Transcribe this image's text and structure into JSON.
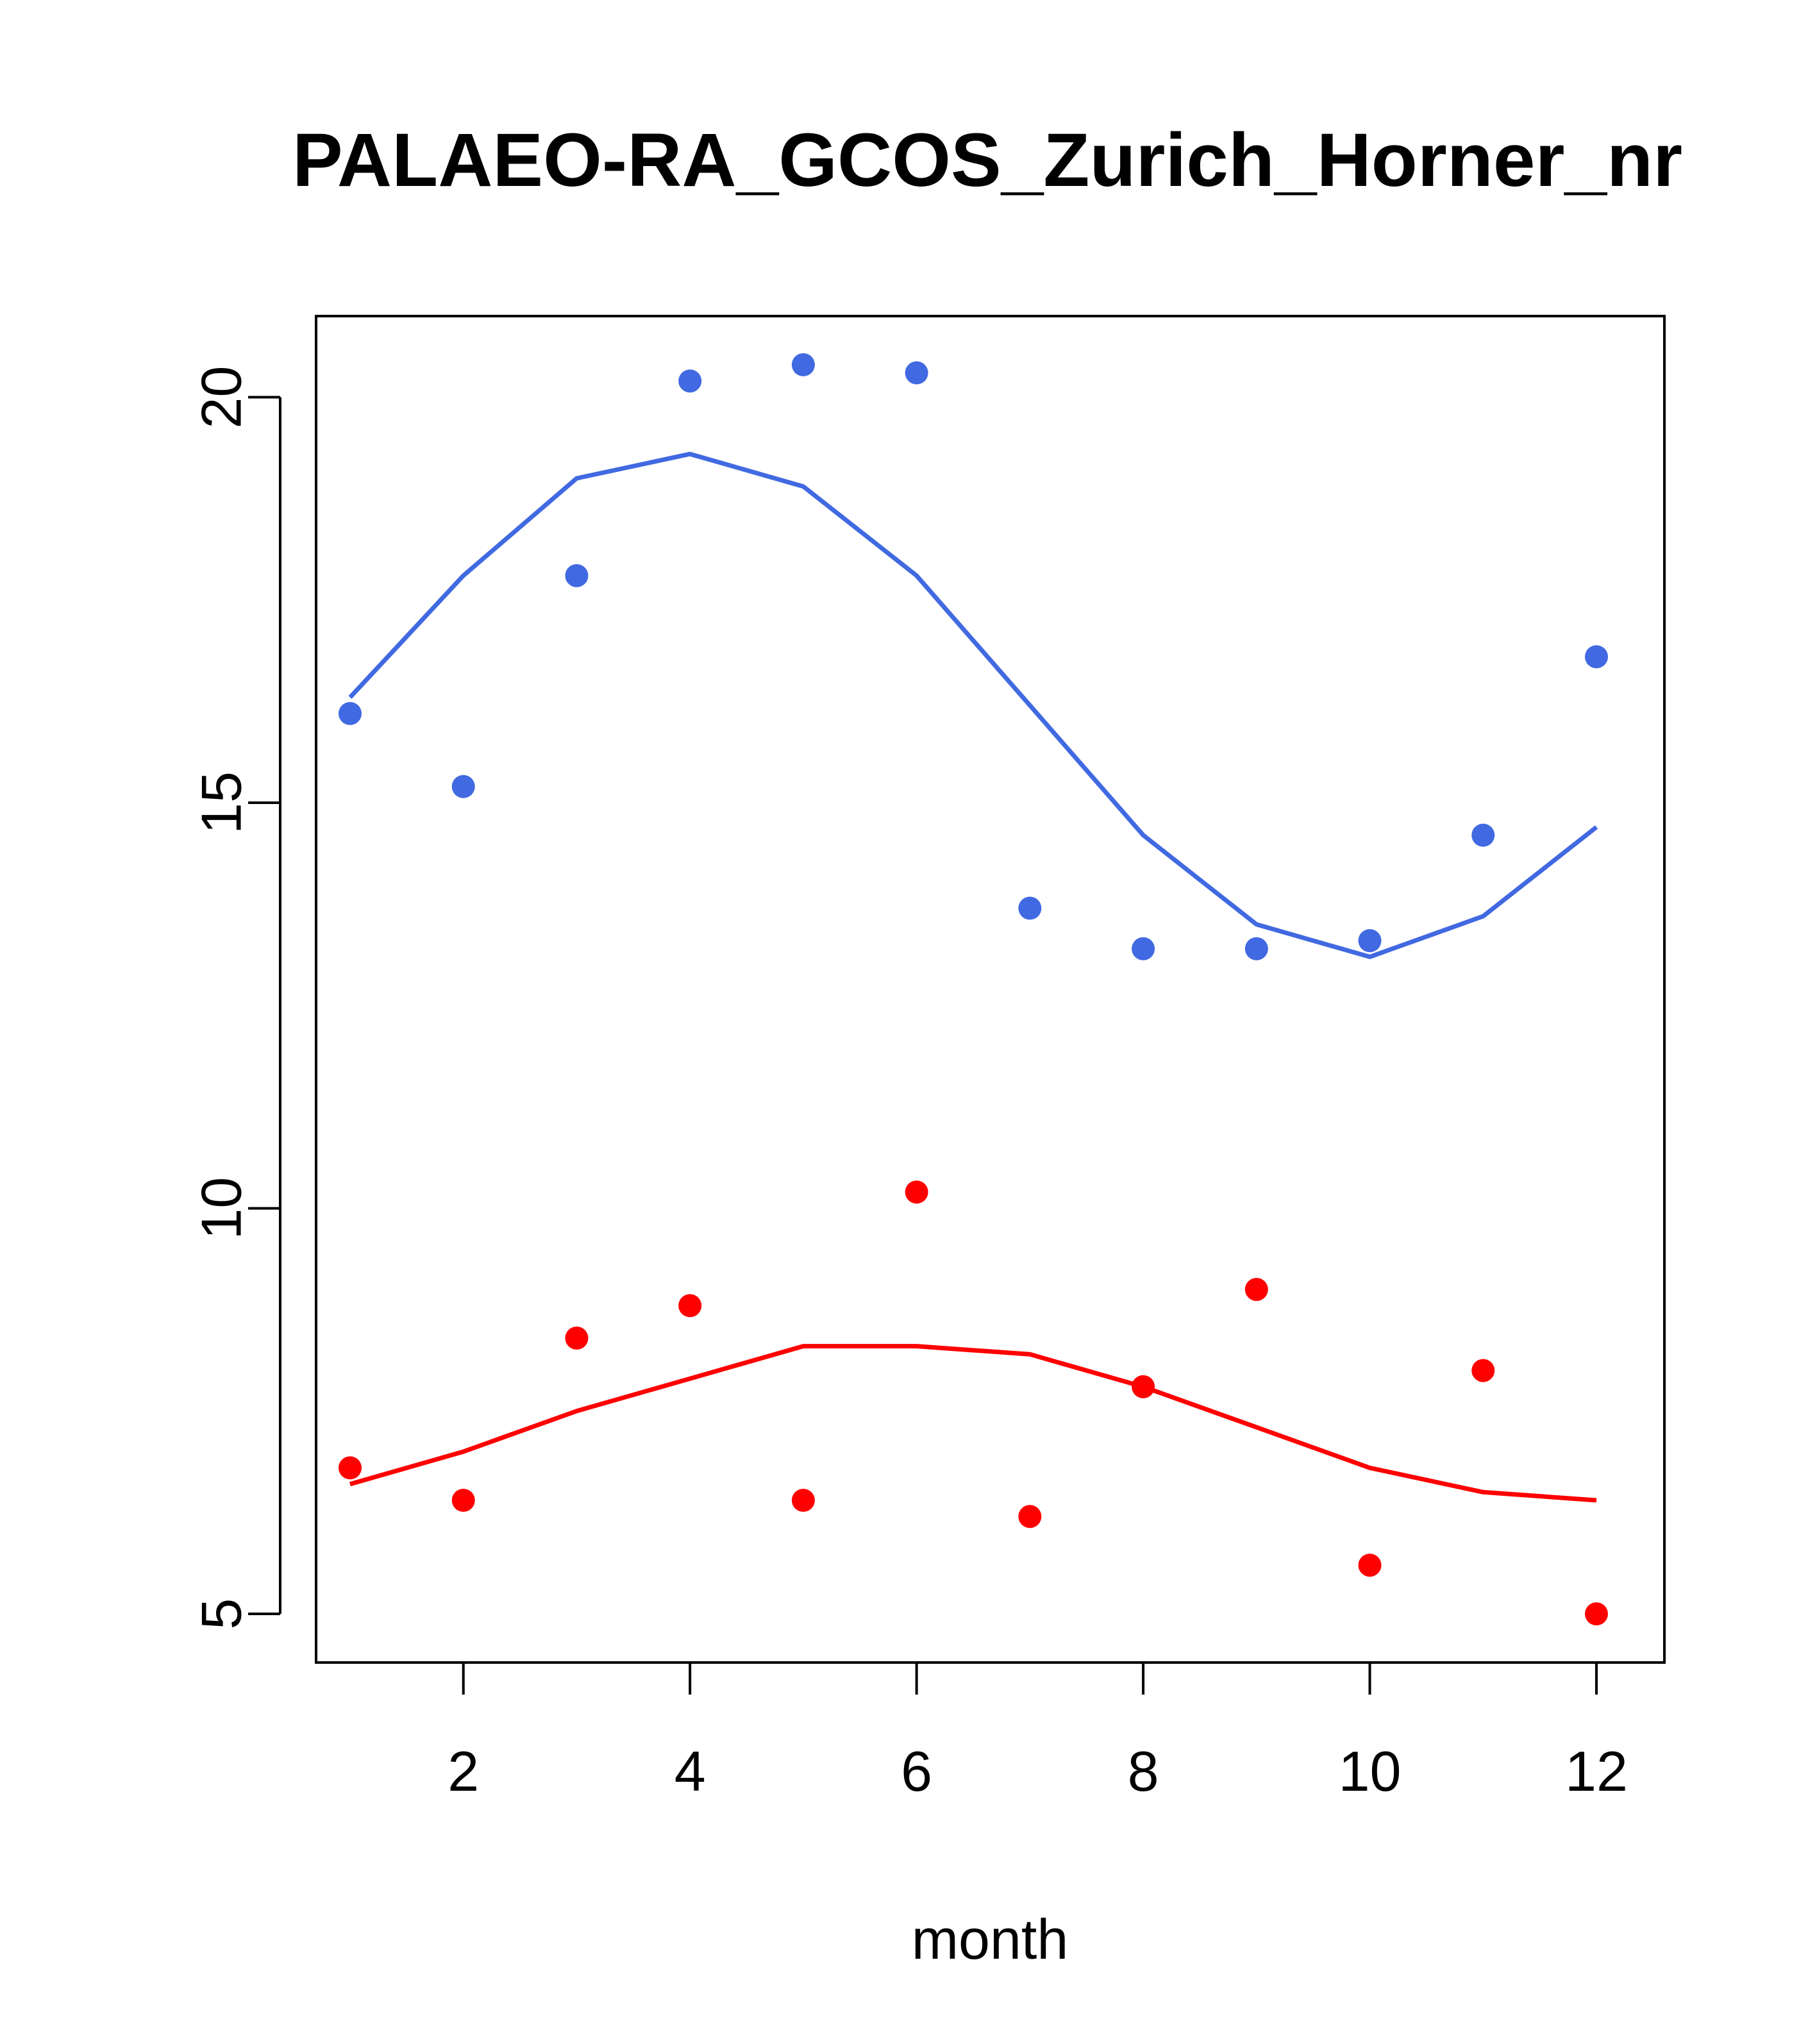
{
  "chart_data": {
    "type": "scatter",
    "title": "PALAEO-RA_GCOS_Zurich_Horner_nr",
    "xlabel": "month",
    "ylabel": "",
    "xlim": [
      0.7,
      12.6
    ],
    "ylim": [
      4.4,
      21.0
    ],
    "xticks": [
      2,
      4,
      6,
      8,
      10,
      12
    ],
    "yticks": [
      5,
      10,
      15,
      20
    ],
    "grid": false,
    "legend": "none",
    "series": [
      {
        "color": "#4169E1",
        "points": [
          [
            1,
            16.1
          ],
          [
            2,
            15.2
          ],
          [
            3,
            17.8
          ],
          [
            4,
            20.2
          ],
          [
            5,
            20.4
          ],
          [
            6,
            20.3
          ],
          [
            7,
            13.7
          ],
          [
            8,
            13.2
          ],
          [
            9,
            13.2
          ],
          [
            10,
            13.3
          ],
          [
            11,
            14.6
          ],
          [
            12,
            16.8
          ]
        ],
        "line": [
          [
            1,
            16.3
          ],
          [
            2,
            17.8
          ],
          [
            3,
            19.0
          ],
          [
            4,
            19.3
          ],
          [
            5,
            18.9
          ],
          [
            6,
            17.8
          ],
          [
            7,
            16.2
          ],
          [
            8,
            14.6
          ],
          [
            9,
            13.5
          ],
          [
            10,
            13.1
          ],
          [
            11,
            13.6
          ],
          [
            12,
            14.7
          ]
        ]
      },
      {
        "color": "#FF0000",
        "points": [
          [
            1,
            6.8
          ],
          [
            2,
            6.4
          ],
          [
            3,
            8.4
          ],
          [
            4,
            8.8
          ],
          [
            5,
            6.4
          ],
          [
            6,
            10.2
          ],
          [
            7,
            6.2
          ],
          [
            8,
            7.8
          ],
          [
            9,
            9.0
          ],
          [
            10,
            5.6
          ],
          [
            11,
            8.0
          ],
          [
            12,
            5.0
          ]
        ],
        "line": [
          [
            1,
            6.6
          ],
          [
            2,
            7.0
          ],
          [
            3,
            7.5
          ],
          [
            4,
            7.9
          ],
          [
            5,
            8.3
          ],
          [
            6,
            8.3
          ],
          [
            7,
            8.2
          ],
          [
            8,
            7.8
          ],
          [
            9,
            7.3
          ],
          [
            10,
            6.8
          ],
          [
            11,
            6.5
          ],
          [
            12,
            6.4
          ]
        ]
      }
    ]
  }
}
